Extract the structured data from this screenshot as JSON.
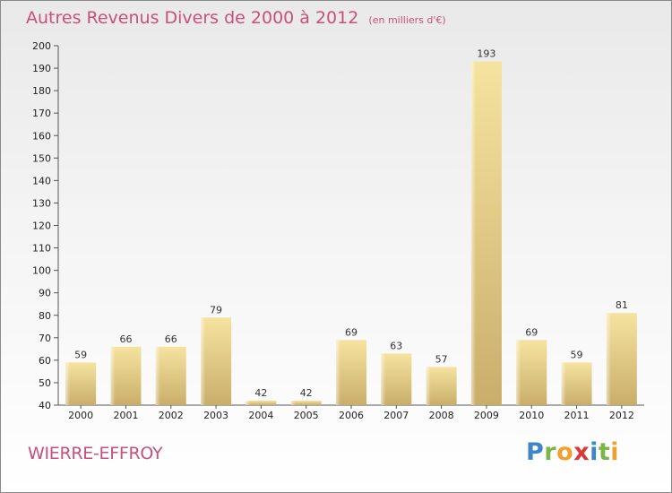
{
  "chart_data": {
    "type": "bar",
    "title": "Autres Revenus Divers de 2000 à 2012",
    "subtitle": "(en milliers d'€)",
    "categories": [
      "2000",
      "2001",
      "2002",
      "2003",
      "2004",
      "2005",
      "2006",
      "2007",
      "2008",
      "2009",
      "2010",
      "2011",
      "2012"
    ],
    "values": [
      59,
      66,
      66,
      79,
      42,
      42,
      69,
      63,
      57,
      193,
      69,
      59,
      81
    ],
    "ylim": [
      40,
      200
    ],
    "yticks": [
      40,
      50,
      60,
      70,
      80,
      90,
      100,
      110,
      120,
      130,
      140,
      150,
      160,
      170,
      180,
      190,
      200
    ],
    "grid": false,
    "colors": {
      "bar_light": "#f6e3a0",
      "bar_dark": "#c9ae6a",
      "text_accent": "#c8507c"
    }
  },
  "footer": {
    "place": "WIERRE-EFFROY",
    "brand_letters": [
      "P",
      "r",
      "o",
      "x",
      "i",
      "t",
      "i"
    ],
    "brand_colors": [
      "#3e86c8",
      "#7ab648",
      "#f0a030",
      "#d83a3a",
      "#3e86c8",
      "#7ab648",
      "#f0a030"
    ]
  }
}
